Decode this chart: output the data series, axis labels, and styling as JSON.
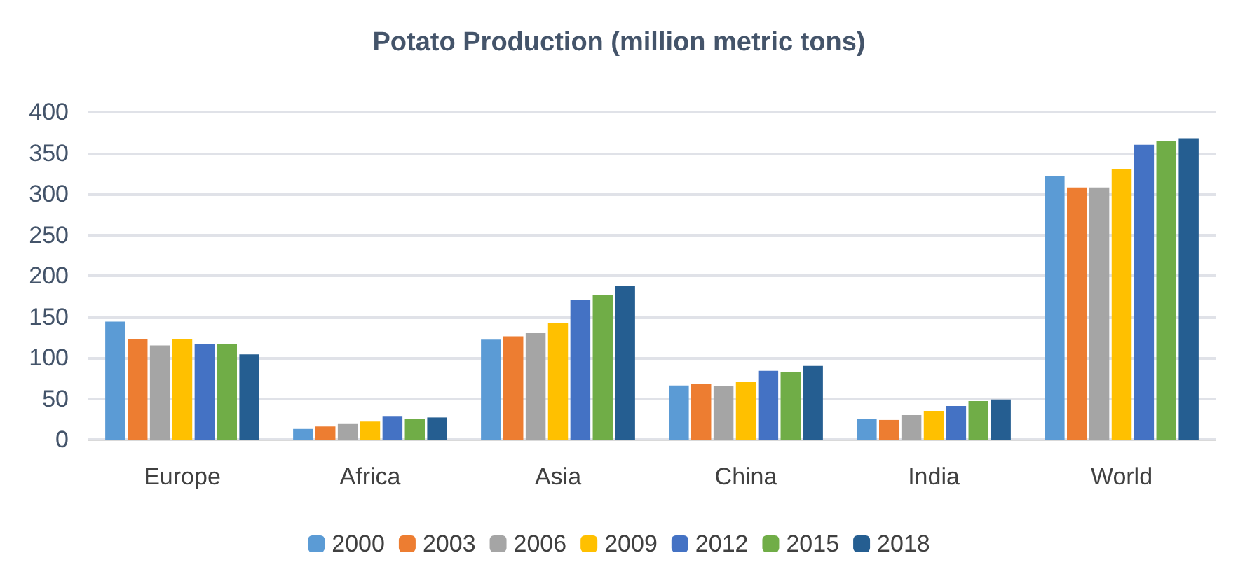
{
  "chart_data": {
    "type": "bar",
    "title": "Potato Production (million metric tons)",
    "categories": [
      "Europe",
      "Africa",
      "Asia",
      "China",
      "India",
      "World"
    ],
    "series": [
      {
        "name": "2000",
        "color": "#5b9bd5",
        "values": [
          144,
          13,
          122,
          66,
          25,
          322
        ]
      },
      {
        "name": "2003",
        "color": "#ed7d31",
        "values": [
          123,
          16,
          126,
          68,
          24,
          308
        ]
      },
      {
        "name": "2006",
        "color": "#a5a5a5",
        "values": [
          115,
          19,
          130,
          65,
          30,
          308
        ]
      },
      {
        "name": "2009",
        "color": "#ffc000",
        "values": [
          123,
          22,
          142,
          70,
          35,
          330
        ]
      },
      {
        "name": "2012",
        "color": "#4472c4",
        "values": [
          117,
          28,
          171,
          84,
          41,
          360
        ]
      },
      {
        "name": "2015",
        "color": "#70ad47",
        "values": [
          117,
          25,
          177,
          82,
          47,
          365
        ]
      },
      {
        "name": "2018",
        "color": "#255e91",
        "values": [
          104,
          27,
          188,
          90,
          49,
          368
        ]
      }
    ],
    "ylim": [
      0,
      400
    ],
    "yticks": [
      0,
      50,
      100,
      150,
      200,
      250,
      300,
      350,
      400
    ],
    "grid": "y",
    "legend": "bottom"
  }
}
